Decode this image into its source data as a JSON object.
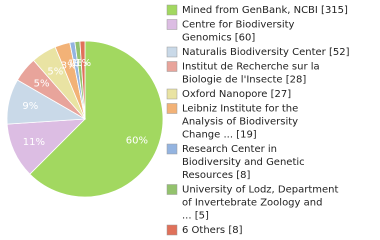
{
  "chart_data": {
    "type": "pie",
    "categories": [
      [
        "Mined from GenBank, NCBI [315]"
      ],
      [
        "Centre for Biodiversity",
        "Genomics [60]"
      ],
      [
        "Naturalis Biodiversity Center [52]"
      ],
      [
        "Institut de Recherche sur la",
        "Biologie de l'Insecte [28]"
      ],
      [
        "Oxford Nanopore [27]"
      ],
      [
        "Leibniz Institute for the",
        "Analysis of Biodiversity",
        "Change ... [19]"
      ],
      [
        "Research Center in",
        "Biodiversity and Genetic",
        "Resources [8]"
      ],
      [
        "University of Lodz, Department",
        "of Invertebrate Zoology and",
        "... [5]"
      ],
      [
        "6 Others [8]"
      ]
    ],
    "values": [
      60,
      11,
      9,
      5,
      5,
      3,
      1,
      1,
      1
    ],
    "value_labels": [
      "60%",
      "11%",
      "9%",
      "5%",
      "5%",
      "3%",
      "1%",
      "1%",
      "1%"
    ],
    "colors": [
      "#a2d860",
      "#dcbde3",
      "#c9d9e8",
      "#e8a49b",
      "#e9e3a3",
      "#f2b277",
      "#94b4e0",
      "#93c26d",
      "#e0715a"
    ]
  }
}
